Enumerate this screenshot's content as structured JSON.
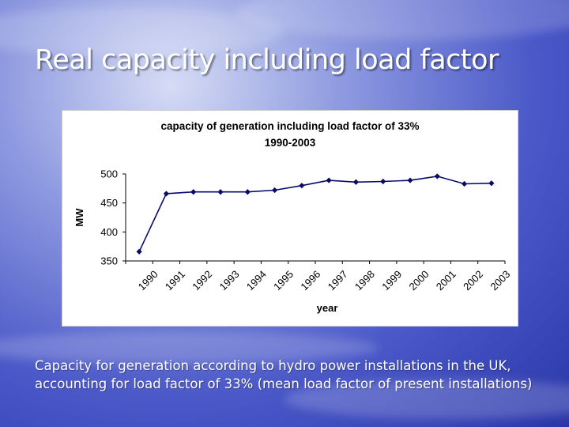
{
  "slide": {
    "title": "Real capacity including load factor",
    "caption": "Capacity for generation according to hydro power installations in the UK, accounting for load factor of 33% (mean load factor of present installations)"
  },
  "colors": {
    "series": "#0a0a6b"
  },
  "chart_data": {
    "type": "line",
    "title": "capacity of generation including load factor of 33%",
    "subtitle": "1990-2003",
    "xlabel": "year",
    "ylabel": "MW",
    "categories": [
      "1990",
      "1991",
      "1992",
      "1993",
      "1994",
      "1995",
      "1996",
      "1997",
      "1998",
      "1999",
      "2000",
      "2001",
      "2002",
      "2003"
    ],
    "series": [
      {
        "name": "capacity",
        "values": [
          366,
          466,
          469,
          469,
          469,
          472,
          480,
          489,
          486,
          487,
          489,
          496,
          483,
          484
        ]
      }
    ],
    "ylim": [
      350,
      500
    ],
    "yticks": [
      350,
      400,
      450,
      500
    ],
    "grid": false,
    "legend": "none"
  }
}
